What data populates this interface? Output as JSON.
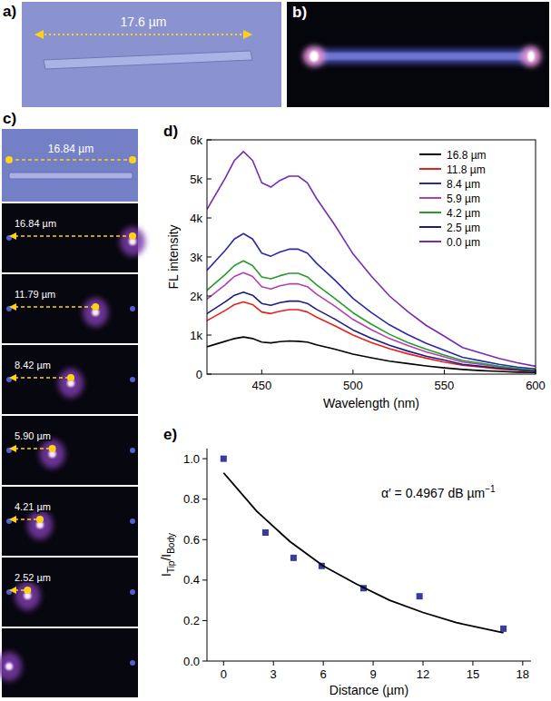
{
  "panel_labels": {
    "a": "a)",
    "b": "b)",
    "c": "c)",
    "d": "d)",
    "e": "e)"
  },
  "micrographs": {
    "a": {
      "length_label": "17.6 µm"
    },
    "c": {
      "length_label": "16.84 µm",
      "frames": [
        {
          "distance": 16.84,
          "label": "16.84 µm"
        },
        {
          "distance": 11.79,
          "label": "11.79 µm"
        },
        {
          "distance": 8.42,
          "label": "8.42 µm"
        },
        {
          "distance": 5.9,
          "label": "5.90 µm"
        },
        {
          "distance": 4.21,
          "label": "4.21 µm"
        },
        {
          "distance": 2.52,
          "label": "2.52 µm"
        },
        {
          "distance": 0
        }
      ]
    }
  },
  "chart_data": [
    {
      "type": "line",
      "x_label": "Wavelength (nm)",
      "y_label": "FL intensity",
      "x": [
        420,
        430,
        435,
        440,
        445,
        450,
        455,
        460,
        465,
        470,
        475,
        480,
        490,
        500,
        510,
        520,
        530,
        540,
        550,
        560,
        570,
        580,
        590,
        600
      ],
      "series": [
        {
          "name": "16.8 µm",
          "color": "#000000",
          "values": [
            700,
            840,
            910,
            950,
            910,
            820,
            800,
            830,
            850,
            840,
            820,
            750,
            640,
            510,
            420,
            330,
            270,
            210,
            160,
            120,
            90,
            70,
            50,
            40
          ]
        },
        {
          "name": "11.8 µm",
          "color": "#e8201c",
          "values": [
            1370,
            1630,
            1780,
            1850,
            1780,
            1590,
            1550,
            1610,
            1650,
            1650,
            1590,
            1460,
            1240,
            1000,
            810,
            650,
            520,
            410,
            310,
            230,
            180,
            130,
            100,
            70
          ]
        },
        {
          "name": "8.4 µm",
          "color": "#2a2aa8",
          "values": [
            2660,
            3170,
            3460,
            3600,
            3460,
            3100,
            3020,
            3130,
            3200,
            3200,
            3100,
            2840,
            2410,
            1940,
            1580,
            1260,
            1010,
            790,
            610,
            430,
            340,
            250,
            180,
            130
          ]
        },
        {
          "name": "5.9 µm",
          "color": "#b040b0",
          "values": [
            1920,
            2290,
            2500,
            2600,
            2500,
            2240,
            2180,
            2260,
            2310,
            2310,
            2240,
            2050,
            1740,
            1400,
            1140,
            910,
            730,
            570,
            440,
            310,
            250,
            180,
            130,
            90
          ]
        },
        {
          "name": "4.2 µm",
          "color": "#2a9a2a",
          "values": [
            2150,
            2550,
            2780,
            2900,
            2780,
            2490,
            2440,
            2520,
            2580,
            2580,
            2490,
            2290,
            1940,
            1570,
            1280,
            1020,
            810,
            640,
            490,
            350,
            280,
            200,
            150,
            100
          ]
        },
        {
          "name": "2.5 µm",
          "color": "#1c1c80",
          "values": [
            1550,
            1850,
            2020,
            2100,
            2020,
            1810,
            1760,
            1830,
            1870,
            1870,
            1810,
            1660,
            1410,
            1130,
            920,
            740,
            590,
            460,
            360,
            250,
            200,
            150,
            110,
            70
          ]
        },
        {
          "name": "0.0 µm",
          "color": "#7a2ab0",
          "values": [
            4220,
            5020,
            5470,
            5700,
            5470,
            4900,
            4790,
            4960,
            5070,
            5070,
            4900,
            4500,
            3820,
            3080,
            2510,
            2000,
            1600,
            1250,
            970,
            680,
            540,
            400,
            290,
            200
          ]
        }
      ],
      "xlim": [
        420,
        600
      ],
      "xticks": [
        450,
        500,
        550,
        600
      ],
      "ylim": [
        0,
        6000
      ],
      "yticks": [
        0,
        {
          "value": 1000,
          "label": "1k"
        },
        {
          "value": 2000,
          "label": "2k"
        },
        {
          "value": 3000,
          "label": "3k"
        },
        {
          "value": 4000,
          "label": "4k"
        },
        {
          "value": 5000,
          "label": "5k"
        },
        {
          "value": 6000,
          "label": "6k"
        }
      ],
      "legend": "top-right"
    },
    {
      "type": "scatter",
      "x_label": "Distance (µm)",
      "y_label": [
        "I",
        "Tip",
        "/I",
        "Body"
      ],
      "annotation": [
        "α′ = 0.4967 dB µm",
        "−1"
      ],
      "series": [
        {
          "type": "scatter",
          "color": "#3a3a9a",
          "marker": "square",
          "x": [
            0,
            2.52,
            4.21,
            5.9,
            8.42,
            11.79,
            16.84
          ],
          "values": [
            1.0,
            0.635,
            0.51,
            0.47,
            0.36,
            0.32,
            0.16
          ]
        },
        {
          "type": "line",
          "color": "#000000",
          "line_style": "solid",
          "x": [
            0,
            2,
            4,
            6,
            8,
            10,
            12,
            14,
            16.84
          ],
          "values": [
            0.93,
            0.74,
            0.59,
            0.47,
            0.38,
            0.3,
            0.24,
            0.19,
            0.14
          ]
        }
      ],
      "xlim": [
        -1,
        18.5
      ],
      "xticks": [
        0,
        3,
        6,
        9,
        12,
        15,
        18
      ],
      "ylim": [
        0,
        1.05
      ],
      "yticks": [
        {
          "value": 0,
          "label": "0.0"
        },
        {
          "value": 0.2,
          "label": "0.2"
        },
        {
          "value": 0.4,
          "label": "0.4"
        },
        {
          "value": 0.6,
          "label": "0.6"
        },
        {
          "value": 0.8,
          "label": "0.8"
        },
        {
          "value": 1.0,
          "label": "1.0"
        }
      ]
    }
  ]
}
